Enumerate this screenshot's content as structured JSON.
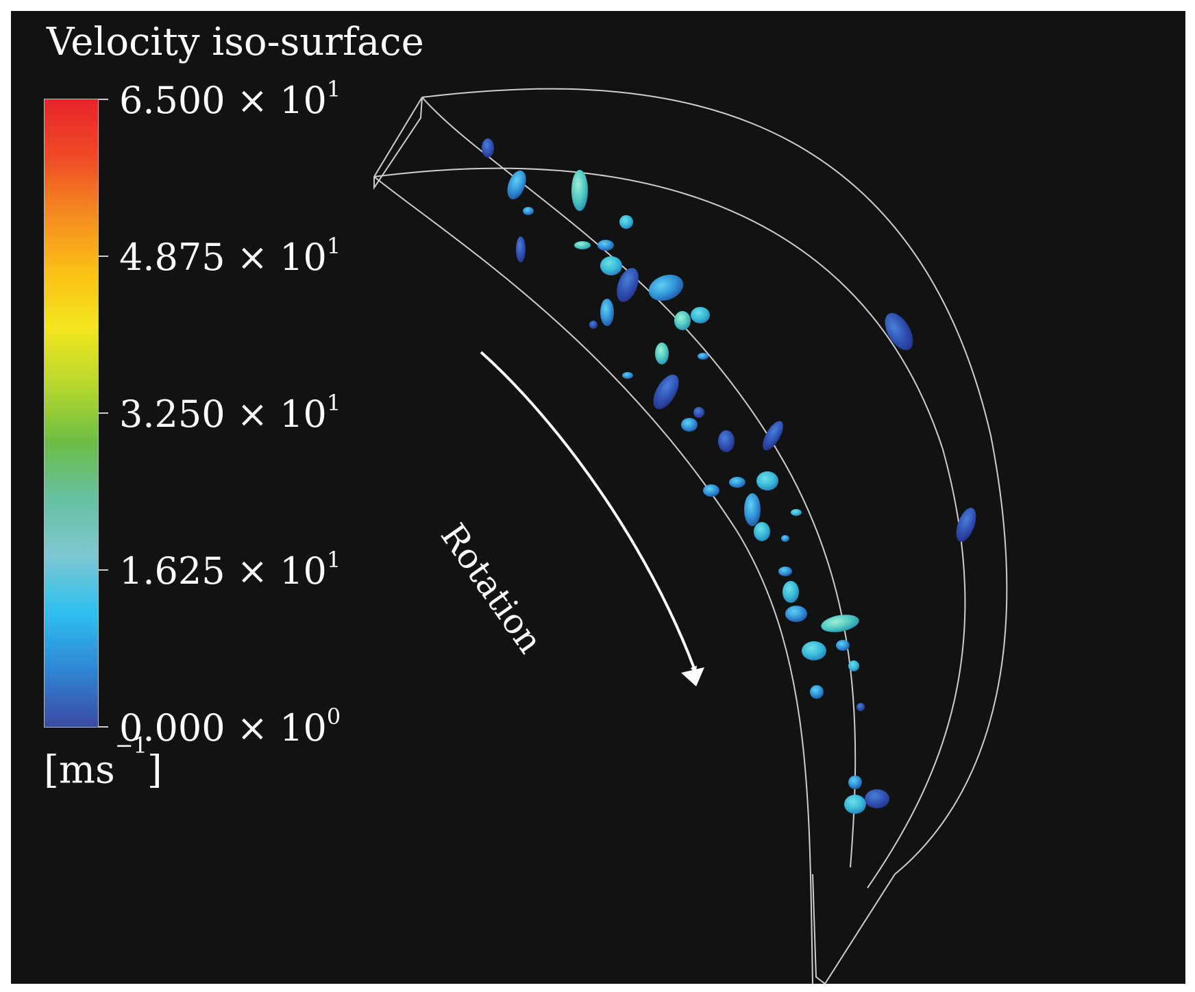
{
  "legend": {
    "title": "Velocity iso-surface",
    "ticks": [
      {
        "mantissa": "6.500",
        "exp": "1"
      },
      {
        "mantissa": "4.875",
        "exp": "1"
      },
      {
        "mantissa": "3.250",
        "exp": "1"
      },
      {
        "mantissa": "1.625",
        "exp": "1"
      },
      {
        "mantissa": "0.000",
        "exp": "0"
      }
    ],
    "times_symbol": "× 10",
    "units_base": "[ms",
    "units_exp": "−1",
    "units_close": "]",
    "colormap": [
      "#3b4aa3",
      "#2f86d3",
      "#2ec0ef",
      "#7ec8d2",
      "#66c0a0",
      "#6dbd45",
      "#b8d82c",
      "#f4e61f",
      "#fbbf16",
      "#f58a20",
      "#ef4a27",
      "#e8242a"
    ]
  },
  "annotation": {
    "label": "Rotation"
  },
  "colors": {
    "background": "#111312",
    "outline": "#d0d0d0",
    "arrow": "#ffffff"
  }
}
